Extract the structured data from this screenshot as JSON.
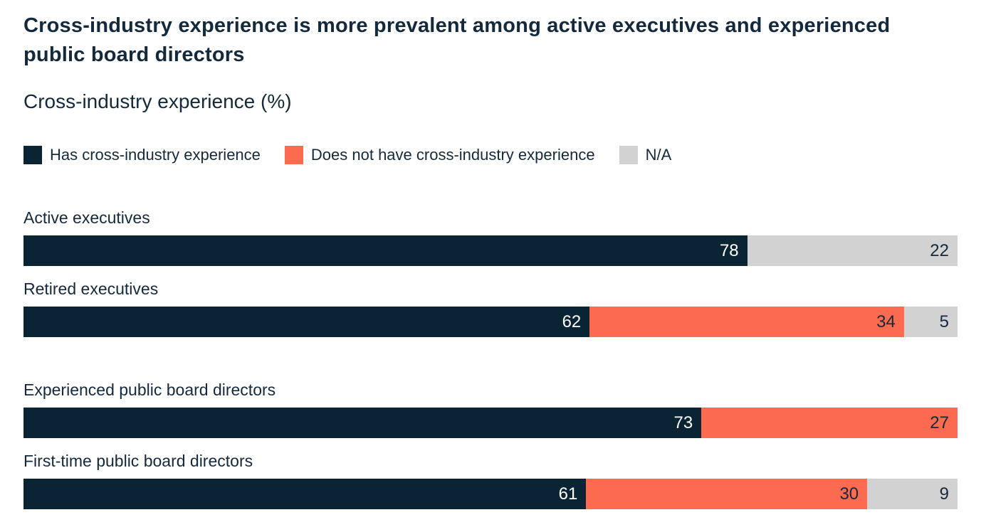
{
  "chart_data": {
    "type": "bar",
    "orientation": "horizontal",
    "stacked": true,
    "title": "Cross-industry experience is more prevalent among active executives and experienced public board directors",
    "subtitle": "Cross-industry experience (%)",
    "xlim": [
      0,
      100
    ],
    "grid": false,
    "legend_position": "top",
    "value_labels": "inside-end",
    "categories": [
      "Active executives",
      "Retired executives",
      "Experienced public board directors",
      "First-time public board directors"
    ],
    "category_groups": [
      [
        "Active executives",
        "Retired executives"
      ],
      [
        "Experienced public board directors",
        "First-time public board directors"
      ]
    ],
    "series": [
      {
        "name": "Has cross-industry experience",
        "color": "#0b2434",
        "label_color": "#ffffff",
        "values": [
          78,
          62,
          73,
          61
        ]
      },
      {
        "name": "Does not have cross-industry experience",
        "color": "#fc6b50",
        "label_color": "#14293c",
        "values": [
          null,
          34,
          27,
          30
        ]
      },
      {
        "name": "N/A",
        "color": "#d2d2d2",
        "label_color": "#14293c",
        "values": [
          22,
          5,
          null,
          9
        ]
      }
    ]
  },
  "style_colors": {
    "text": "#14293c",
    "background": "#ffffff"
  }
}
